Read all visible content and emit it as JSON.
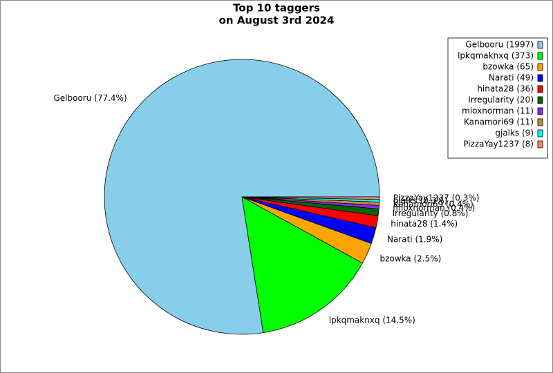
{
  "chart_data": {
    "type": "pie",
    "title": [
      "Top 10 taggers",
      "on August 3rd 2024"
    ],
    "categories": [
      "Gelbooru (1997)",
      "lpkqmaknxq (373)",
      "bzowka (65)",
      "Narati (49)",
      "hinata28 (36)",
      "Irregularity (20)",
      "mioxnorman (11)",
      "Kanamori69 (11)",
      "gjalks (9)",
      "PizzaYay1237 (8)"
    ],
    "values": [
      77.4,
      14.5,
      2.5,
      1.9,
      1.4,
      0.8,
      0.4,
      0.4,
      0.3,
      0.3
    ],
    "value_labels": [
      "Gelbooru (77.4%)",
      "lpkqmaknxq (14.5%)",
      "bzowka (2.5%)",
      "Narati (1.9%)",
      "hinata28 (1.4%)",
      "Irregularity (0.8%)",
      "mioxnorman (0.4%)",
      "Kanamori69 (0.4%)",
      "gjalks (0.3%)",
      "PizzaYay1237 (0.3%)"
    ],
    "colors": [
      "#87ceeb",
      "#00ff00",
      "#ffa500",
      "#0000ff",
      "#ff0000",
      "#006400",
      "#8a2be2",
      "#cd853f",
      "#00ffff",
      "#fa8072"
    ],
    "legend": "upper right"
  }
}
